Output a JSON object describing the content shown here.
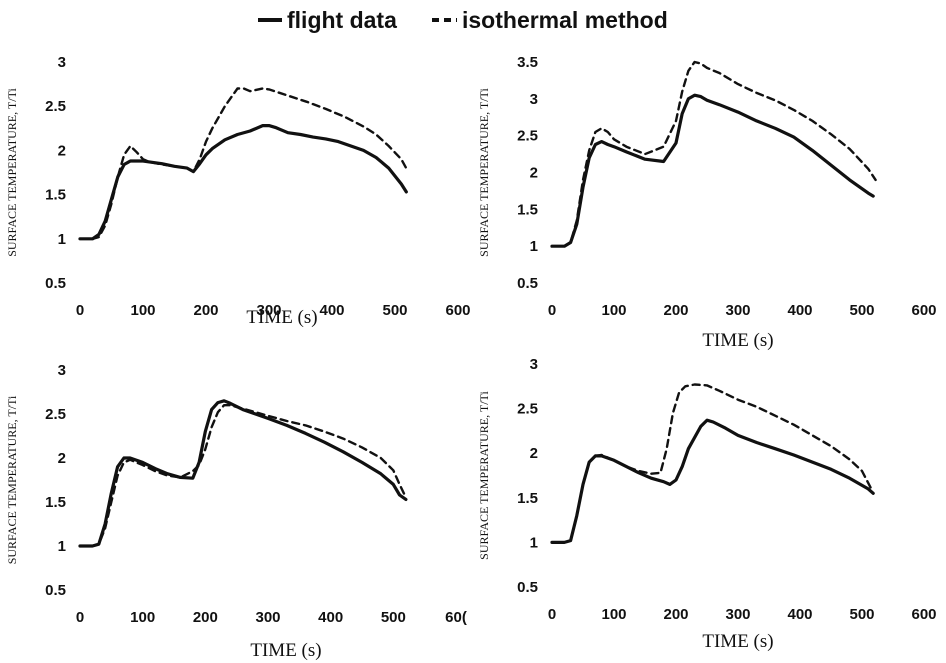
{
  "legend": {
    "flight_label": "flight data",
    "iso_label": "isothermal method"
  },
  "chart_data": [
    {
      "type": "line",
      "xlabel": "TIME (s)",
      "ylabel": "SURFACE TEMPERATURE, T/Ti",
      "xlim": [
        0,
        600
      ],
      "ylim": [
        0.5,
        3
      ],
      "xticks": [
        "0",
        "100",
        "200",
        "300",
        "400",
        "500",
        "600"
      ],
      "yticks": [
        "0.5",
        "1",
        "1.5",
        "2",
        "2.5",
        "3"
      ],
      "series": [
        {
          "name": "flight data",
          "style": "solid",
          "x": [
            0,
            20,
            30,
            40,
            50,
            60,
            70,
            80,
            90,
            100,
            110,
            130,
            150,
            170,
            180,
            190,
            200,
            210,
            230,
            250,
            270,
            290,
            300,
            310,
            330,
            350,
            370,
            390,
            410,
            430,
            450,
            470,
            490,
            510,
            518
          ],
          "y": [
            1,
            1,
            1.05,
            1.2,
            1.45,
            1.7,
            1.84,
            1.88,
            1.88,
            1.88,
            1.87,
            1.85,
            1.82,
            1.8,
            1.76,
            1.85,
            1.95,
            2.02,
            2.12,
            2.18,
            2.22,
            2.28,
            2.28,
            2.26,
            2.2,
            2.18,
            2.15,
            2.13,
            2.1,
            2.05,
            2.0,
            1.92,
            1.8,
            1.62,
            1.53
          ]
        },
        {
          "name": "isothermal method",
          "style": "dashed",
          "x": [
            0,
            20,
            30,
            40,
            50,
            60,
            70,
            80,
            90,
            100,
            110,
            130,
            150,
            170,
            180,
            190,
            200,
            210,
            230,
            250,
            260,
            270,
            290,
            300,
            330,
            360,
            390,
            420,
            450,
            470,
            490,
            510,
            520
          ],
          "y": [
            1,
            1,
            1.02,
            1.15,
            1.4,
            1.7,
            1.95,
            2.05,
            1.98,
            1.9,
            1.87,
            1.84,
            1.82,
            1.8,
            1.76,
            1.9,
            2.1,
            2.25,
            2.5,
            2.7,
            2.7,
            2.67,
            2.7,
            2.69,
            2.62,
            2.55,
            2.47,
            2.38,
            2.27,
            2.18,
            2.05,
            1.9,
            1.77
          ]
        }
      ]
    },
    {
      "type": "line",
      "xlabel": "TIME (s)",
      "ylabel": "SURFACE TEMPERATURE, T/Ti",
      "xlim": [
        0,
        600
      ],
      "ylim": [
        0.5,
        3.5
      ],
      "xticks": [
        "0",
        "100",
        "200",
        "300",
        "400",
        "500",
        "600"
      ],
      "yticks": [
        "0.5",
        "1",
        "1.5",
        "2",
        "2.5",
        "3",
        "3.5"
      ],
      "series": [
        {
          "name": "flight data",
          "style": "solid",
          "x": [
            0,
            20,
            30,
            40,
            50,
            60,
            70,
            80,
            90,
            100,
            120,
            150,
            180,
            200,
            210,
            220,
            230,
            240,
            250,
            270,
            300,
            330,
            360,
            390,
            420,
            450,
            480,
            510,
            518
          ],
          "y": [
            1,
            1,
            1.05,
            1.3,
            1.8,
            2.2,
            2.38,
            2.42,
            2.38,
            2.35,
            2.28,
            2.18,
            2.15,
            2.4,
            2.8,
            3.0,
            3.05,
            3.03,
            2.98,
            2.92,
            2.82,
            2.7,
            2.6,
            2.48,
            2.3,
            2.1,
            1.9,
            1.72,
            1.68
          ]
        },
        {
          "name": "isothermal method",
          "style": "dashed",
          "x": [
            0,
            20,
            30,
            40,
            50,
            60,
            70,
            80,
            90,
            100,
            120,
            150,
            180,
            200,
            210,
            220,
            230,
            240,
            250,
            270,
            300,
            330,
            360,
            390,
            420,
            450,
            480,
            510,
            522
          ],
          "y": [
            1,
            1,
            1.05,
            1.35,
            1.9,
            2.3,
            2.55,
            2.6,
            2.55,
            2.45,
            2.35,
            2.25,
            2.35,
            2.7,
            3.1,
            3.38,
            3.5,
            3.48,
            3.42,
            3.35,
            3.2,
            3.08,
            2.98,
            2.85,
            2.7,
            2.52,
            2.32,
            2.05,
            1.9
          ]
        }
      ]
    },
    {
      "type": "line",
      "xlabel": "TIME (s)",
      "ylabel": "SURFACE TEMPERATURE, T/Ti",
      "xlim": [
        0,
        600
      ],
      "ylim": [
        0.5,
        3
      ],
      "xticks": [
        "0",
        "100",
        "200",
        "300",
        "400",
        "500",
        "60("
      ],
      "yticks": [
        "0.5",
        "1",
        "1.5",
        "2",
        "2.5",
        "3"
      ],
      "series": [
        {
          "name": "flight data",
          "style": "solid",
          "x": [
            0,
            20,
            30,
            40,
            50,
            60,
            70,
            80,
            100,
            120,
            140,
            160,
            180,
            190,
            200,
            210,
            220,
            230,
            240,
            260,
            280,
            300,
            330,
            360,
            390,
            420,
            450,
            480,
            500,
            510,
            520
          ],
          "y": [
            1,
            1,
            1.02,
            1.25,
            1.6,
            1.9,
            2.0,
            2.0,
            1.95,
            1.88,
            1.82,
            1.78,
            1.77,
            1.95,
            2.3,
            2.55,
            2.63,
            2.65,
            2.62,
            2.55,
            2.5,
            2.45,
            2.37,
            2.28,
            2.18,
            2.07,
            1.95,
            1.82,
            1.7,
            1.58,
            1.53
          ]
        },
        {
          "name": "isothermal method",
          "style": "dashed",
          "x": [
            0,
            20,
            30,
            40,
            50,
            60,
            70,
            80,
            100,
            120,
            140,
            160,
            180,
            190,
            200,
            210,
            220,
            230,
            240,
            260,
            280,
            300,
            330,
            360,
            390,
            420,
            450,
            480,
            500,
            510,
            520
          ],
          "y": [
            1,
            1,
            1.02,
            1.2,
            1.5,
            1.8,
            1.95,
            1.98,
            1.92,
            1.85,
            1.8,
            1.78,
            1.85,
            1.92,
            2.1,
            2.35,
            2.52,
            2.6,
            2.6,
            2.56,
            2.52,
            2.48,
            2.42,
            2.37,
            2.3,
            2.22,
            2.12,
            2.0,
            1.86,
            1.7,
            1.55
          ]
        }
      ]
    },
    {
      "type": "line",
      "xlabel": "TIME (s)",
      "ylabel": "SURFACE TEMPERATURE, T/Ti",
      "xlim": [
        0,
        600
      ],
      "ylim": [
        0.5,
        3
      ],
      "xticks": [
        "0",
        "100",
        "200",
        "300",
        "400",
        "500",
        "600"
      ],
      "yticks": [
        "0.5",
        "1",
        "1.5",
        "2",
        "2.5",
        "3"
      ],
      "series": [
        {
          "name": "flight data",
          "style": "solid",
          "x": [
            0,
            20,
            30,
            40,
            50,
            60,
            70,
            80,
            100,
            120,
            140,
            160,
            180,
            190,
            200,
            210,
            220,
            240,
            250,
            260,
            280,
            300,
            330,
            360,
            390,
            420,
            450,
            480,
            510,
            518
          ],
          "y": [
            1,
            1,
            1.02,
            1.3,
            1.65,
            1.9,
            1.97,
            1.97,
            1.92,
            1.85,
            1.78,
            1.72,
            1.68,
            1.65,
            1.7,
            1.85,
            2.05,
            2.3,
            2.37,
            2.35,
            2.28,
            2.2,
            2.12,
            2.05,
            1.98,
            1.9,
            1.82,
            1.72,
            1.6,
            1.55
          ]
        },
        {
          "name": "isothermal method",
          "style": "dashed",
          "x": [
            0,
            20,
            30,
            40,
            50,
            60,
            70,
            80,
            100,
            120,
            140,
            160,
            175,
            185,
            195,
            205,
            215,
            230,
            250,
            270,
            300,
            330,
            360,
            390,
            420,
            450,
            480,
            500,
            515
          ],
          "y": [
            1,
            1,
            1.02,
            1.3,
            1.65,
            1.9,
            1.97,
            1.98,
            1.92,
            1.85,
            1.8,
            1.77,
            1.78,
            2.05,
            2.45,
            2.68,
            2.75,
            2.77,
            2.76,
            2.7,
            2.6,
            2.52,
            2.42,
            2.32,
            2.2,
            2.08,
            1.93,
            1.8,
            1.6
          ]
        }
      ]
    }
  ]
}
